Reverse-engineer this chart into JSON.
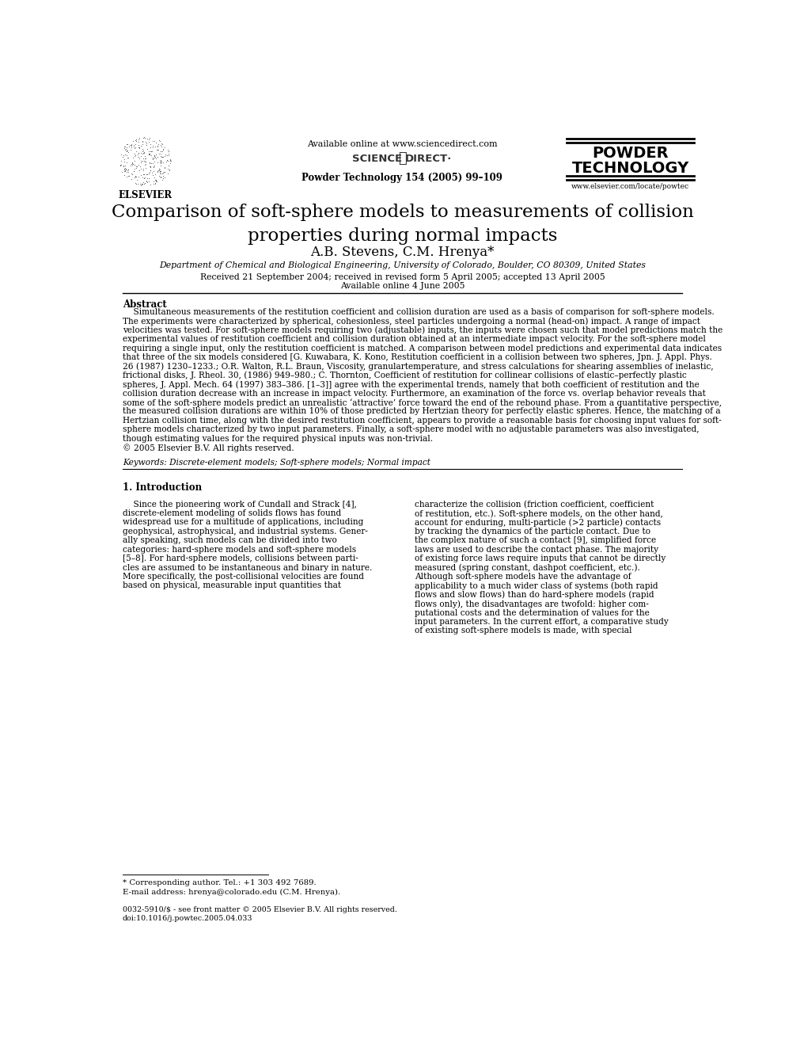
{
  "page_width": 9.92,
  "page_height": 13.23,
  "bg_color": "#ffffff",
  "header": {
    "available_online": "Available online at www.sciencedirect.com",
    "journal_ref": "Powder Technology 154 (2005) 99–109",
    "journal_name_line1": "POWDER",
    "journal_name_line2": "TECHNOLOGY",
    "elsevier_text": "ELSEVIER",
    "website": "www.elsevier.com/locate/powtec"
  },
  "title": "Comparison of soft-sphere models to measurements of collision\nproperties during normal impacts",
  "authors": "A.B. Stevens, C.M. Hrenya*",
  "affiliation": "Department of Chemical and Biological Engineering, University of Colorado, Boulder, CO 80309, United States",
  "received": "Received 21 September 2004; received in revised form 5 April 2005; accepted 13 April 2005",
  "available_online_date": "Available online 4 June 2005",
  "abstract_title": "Abstract",
  "keywords": "Keywords: Discrete-element models; Soft-sphere models; Normal impact",
  "section1_title": "1. Introduction",
  "footnote_star": "* Corresponding author. Tel.: +1 303 492 7689.",
  "footnote_email": "E-mail address: hrenya@colorado.edu (C.M. Hrenya).",
  "footer_issn": "0032-5910/$ - see front matter © 2005 Elsevier B.V. All rights reserved.",
  "footer_doi": "doi:10.1016/j.powtec.2005.04.033",
  "abstract_lines": [
    "    Simultaneous measurements of the restitution coefficient and collision duration are used as a basis of comparison for soft-sphere models.",
    "The experiments were characterized by spherical, cohesionless, steel particles undergoing a normal (head-on) impact. A range of impact",
    "velocities was tested. For soft-sphere models requiring two (adjustable) inputs, the inputs were chosen such that model predictions match the",
    "experimental values of restitution coefficient and collision duration obtained at an intermediate impact velocity. For the soft-sphere model",
    "requiring a single input, only the restitution coefficient is matched. A comparison between model predictions and experimental data indicates",
    "that three of the six models considered [G. Kuwabara, K. Kono, Restitution coefficient in a collision between two spheres, Jpn. J. Appl. Phys.",
    "26 (1987) 1230–1233.; O.R. Walton, R.L. Braun, Viscosity, granulartemperature, and stress calculations for shearing assemblies of inelastic,",
    "frictional disks, J. Rheol. 30, (1986) 949–980.; C. Thornton, Coefficient of restitution for collinear collisions of elastic–perfectly plastic",
    "spheres, J. Appl. Mech. 64 (1997) 383–386. [1–3]] agree with the experimental trends, namely that both coefficient of restitution and the",
    "collision duration decrease with an increase in impact velocity. Furthermore, an examination of the force vs. overlap behavior reveals that",
    "some of the soft-sphere models predict an unrealistic ‘attractive’ force toward the end of the rebound phase. From a quantitative perspective,",
    "the measured collision durations are within 10% of those predicted by Hertzian theory for perfectly elastic spheres. Hence, the matching of a",
    "Hertzian collision time, along with the desired restitution coefficient, appears to provide a reasonable basis for choosing input values for soft-",
    "sphere models characterized by two input parameters. Finally, a soft-sphere model with no adjustable parameters was also investigated,",
    "though estimating values for the required physical inputs was non-trivial.",
    "© 2005 Elsevier B.V. All rights reserved."
  ],
  "col1_lines": [
    "    Since the pioneering work of Cundall and Strack [4],",
    "discrete-element modeling of solids flows has found",
    "widespread use for a multitude of applications, including",
    "geophysical, astrophysical, and industrial systems. Gener-",
    "ally speaking, such models can be divided into two",
    "categories: hard-sphere models and soft-sphere models",
    "[5–8]. For hard-sphere models, collisions between parti-",
    "cles are assumed to be instantaneous and binary in nature.",
    "More specifically, the post-collisional velocities are found",
    "based on physical, measurable input quantities that"
  ],
  "col2_lines": [
    "characterize the collision (friction coefficient, coefficient",
    "of restitution, etc.). Soft-sphere models, on the other hand,",
    "account for enduring, multi-particle (>2 particle) contacts",
    "by tracking the dynamics of the particle contact. Due to",
    "the complex nature of such a contact [9], simplified force",
    "laws are used to describe the contact phase. The majority",
    "of existing force laws require inputs that cannot be directly",
    "measured (spring constant, dashpot coefficient, etc.).",
    "Although soft-sphere models have the advantage of",
    "applicability to a much wider class of systems (both rapid",
    "flows and slow flows) than do hard-sphere models (rapid",
    "flows only), the disadvantages are twofold: higher com-",
    "putational costs and the determination of values for the",
    "input parameters. In the current effort, a comparative study",
    "of existing soft-sphere models is made, with special"
  ]
}
